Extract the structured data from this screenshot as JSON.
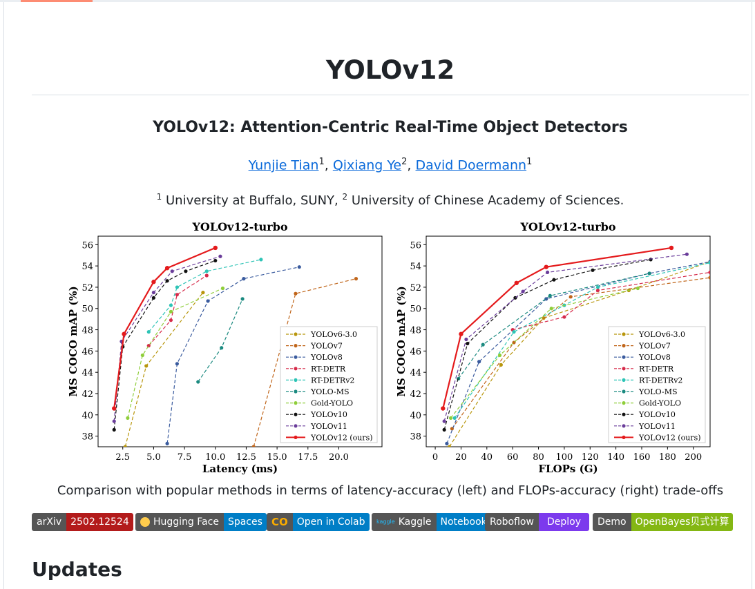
{
  "repo_title": "YOLOv12",
  "paper_title": "YOLOv12: Attention-Centric Real-Time Object Detectors",
  "authors": [
    {
      "name": "Yunjie Tian",
      "sup": "1"
    },
    {
      "name": "Qixiang Ye",
      "sup": "2"
    },
    {
      "name": "David Doermann",
      "sup": "1"
    }
  ],
  "affiliation": {
    "sup1": "1",
    "text1": " University at Buffalo, SUNY, ",
    "sup2": "2",
    "text2": " University of Chinese Academy of Sciences."
  },
  "caption": "Comparison with popular methods in terms of latency-accuracy (left) and FLOPs-accuracy (right) trade-offs",
  "badges": [
    {
      "label": "arXiv",
      "value": "2502.12524",
      "color": "#b31b1b",
      "icon": ""
    },
    {
      "label": "Hugging Face",
      "value": "Spaces",
      "color": "#007ec6",
      "icon": "hugging-face-icon"
    },
    {
      "label": "",
      "value": "Open in Colab",
      "color": "#007ec6",
      "icon": "colab-icon"
    },
    {
      "label": "Kaggle",
      "value": "Notebook",
      "color": "#007ec6",
      "icon": "kaggle-icon"
    },
    {
      "label": "Roboflow",
      "value": "Deploy",
      "color": "#7c3aed",
      "icon": ""
    },
    {
      "label": "Demo",
      "value": "OpenBayes贝式计算",
      "color": "#84b713",
      "icon": ""
    }
  ],
  "updates_heading": "Updates",
  "chart_data": [
    {
      "type": "line",
      "title": "YOLOv12-turbo",
      "xlabel": "Latency (ms)",
      "ylabel": "MS COCO mAP (%)",
      "xlim": [
        0.5,
        23.5
      ],
      "ylim": [
        37,
        56.8
      ],
      "xticks": [
        "2.5",
        "5.0",
        "7.5",
        "10.0",
        "12.5",
        "15.0",
        "17.5",
        "20.0"
      ],
      "yticks": [
        "38",
        "40",
        "42",
        "44",
        "46",
        "48",
        "50",
        "52",
        "54",
        "56"
      ],
      "legend_position": "lower-right",
      "series": [
        {
          "name": "YOLOv6-3.0",
          "color": "#b8960c",
          "dashed": true,
          "x": [
            2.7,
            4.4,
            9.0
          ],
          "y": [
            37.0,
            44.6,
            51.5
          ]
        },
        {
          "name": "YOLOv7",
          "color": "#c0651a",
          "dashed": true,
          "x": [
            13.1,
            16.5,
            21.4
          ],
          "y": [
            37.0,
            51.4,
            52.8
          ]
        },
        {
          "name": "YOLOv8",
          "color": "#3a5b9e",
          "dashed": true,
          "x": [
            6.1,
            6.9,
            9.4,
            12.3,
            16.8
          ],
          "y": [
            37.3,
            44.8,
            50.7,
            52.8,
            53.9
          ]
        },
        {
          "name": "RT-DETR",
          "color": "#d62b4a",
          "dashed": true,
          "x": [
            4.6,
            6.4,
            6.9,
            9.3
          ],
          "y": [
            46.5,
            48.9,
            51.3,
            53.1
          ]
        },
        {
          "name": "RT-DETRv2",
          "color": "#2ec4b6",
          "dashed": true,
          "x": [
            4.6,
            6.4,
            6.9,
            9.3,
            13.7
          ],
          "y": [
            47.8,
            50.3,
            52.0,
            53.5,
            54.6
          ]
        },
        {
          "name": "YOLO-MS",
          "color": "#1b8a80",
          "dashed": true,
          "x": [
            8.6,
            10.5,
            12.2
          ],
          "y": [
            43.1,
            46.3,
            50.9
          ]
        },
        {
          "name": "Gold-YOLO",
          "color": "#8fce3a",
          "dashed": true,
          "x": [
            2.9,
            4.1,
            6.4,
            10.6
          ],
          "y": [
            39.7,
            45.6,
            49.7,
            51.9
          ]
        },
        {
          "name": "YOLOv10",
          "color": "#111111",
          "dashed": true,
          "x": [
            1.8,
            2.5,
            5.0,
            6.1,
            7.6,
            10.0
          ],
          "y": [
            38.6,
            46.4,
            51.0,
            52.6,
            53.5,
            54.5
          ]
        },
        {
          "name": "YOLOv11",
          "color": "#6a3d9a",
          "dashed": true,
          "x": [
            1.8,
            2.4,
            5.0,
            6.5,
            10.4
          ],
          "y": [
            39.4,
            46.9,
            51.5,
            53.5,
            54.9
          ]
        },
        {
          "name": "YOLOv12 (ours)",
          "color": "#e41a1c",
          "dashed": false,
          "x": [
            1.8,
            2.6,
            5.0,
            6.1,
            10.0
          ],
          "y": [
            40.6,
            47.6,
            52.5,
            53.8,
            55.7
          ]
        }
      ]
    },
    {
      "type": "line",
      "title": "YOLOv12-turbo",
      "xlabel": "FLOPs (G)",
      "ylabel": "MS COCO mAP (%)",
      "xlim": [
        -7,
        213
      ],
      "ylim": [
        37,
        56.8
      ],
      "xticks": [
        "0",
        "20",
        "40",
        "60",
        "80",
        "100",
        "120",
        "140",
        "160",
        "180",
        "200"
      ],
      "yticks": [
        "38",
        "40",
        "42",
        "44",
        "46",
        "48",
        "50",
        "52",
        "54",
        "56"
      ],
      "legend_position": "lower-right",
      "series": [
        {
          "name": "YOLOv6-3.0",
          "color": "#b8960c",
          "dashed": true,
          "x": [
            11,
            51,
            84,
            150,
            213
          ],
          "y": [
            37.0,
            44.7,
            49.1,
            51.7,
            54.4
          ]
        },
        {
          "name": "YOLOv7",
          "color": "#c0651a",
          "dashed": true,
          "x": [
            13,
            61,
            105,
            213
          ],
          "y": [
            38.7,
            46.8,
            51.1,
            52.9
          ]
        },
        {
          "name": "YOLOv8",
          "color": "#3a5b9e",
          "dashed": true,
          "x": [
            9,
            34,
            86,
            166,
            213
          ],
          "y": [
            37.3,
            45.0,
            50.9,
            53.3,
            54.4
          ]
        },
        {
          "name": "RT-DETR",
          "color": "#d62b4a",
          "dashed": true,
          "x": [
            60,
            100,
            126,
            213
          ],
          "y": [
            48.0,
            49.2,
            51.7,
            53.4
          ]
        },
        {
          "name": "RT-DETRv2",
          "color": "#2ec4b6",
          "dashed": true,
          "x": [
            15,
            61,
            100,
            126,
            213
          ],
          "y": [
            39.7,
            47.8,
            50.3,
            52.0,
            54.3
          ]
        },
        {
          "name": "YOLO-MS",
          "color": "#1b8a80",
          "dashed": true,
          "x": [
            18,
            37,
            89,
            166
          ],
          "y": [
            43.4,
            46.6,
            51.2,
            53.3
          ]
        },
        {
          "name": "Gold-YOLO",
          "color": "#8fce3a",
          "dashed": true,
          "x": [
            12,
            50,
            90,
            157
          ],
          "y": [
            39.7,
            45.6,
            50.0,
            51.9
          ]
        },
        {
          "name": "YOLOv10",
          "color": "#111111",
          "dashed": true,
          "x": [
            7,
            25,
            62,
            92,
            122,
            167
          ],
          "y": [
            38.6,
            46.7,
            51.0,
            52.7,
            53.6,
            54.6
          ]
        },
        {
          "name": "YOLOv11",
          "color": "#6a3d9a",
          "dashed": true,
          "x": [
            7,
            24,
            68,
            87,
            195
          ],
          "y": [
            39.4,
            47.1,
            51.6,
            53.4,
            55.1
          ]
        },
        {
          "name": "YOLOv12 (ours)",
          "color": "#e41a1c",
          "dashed": false,
          "x": [
            6,
            20,
            63,
            86,
            183
          ],
          "y": [
            40.6,
            47.6,
            52.4,
            53.9,
            55.7
          ]
        }
      ]
    }
  ]
}
